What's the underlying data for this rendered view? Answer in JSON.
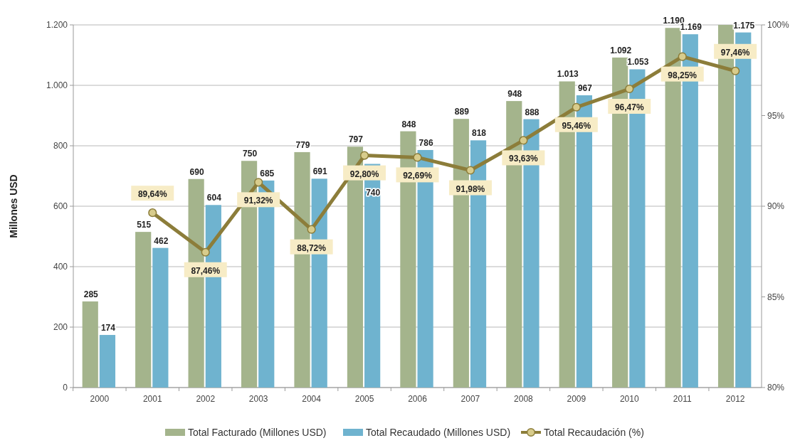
{
  "chart_data": {
    "type": "bar",
    "ylabel": "Millones USD",
    "categories": [
      "2000",
      "2001",
      "2002",
      "2003",
      "2004",
      "2005",
      "2006",
      "2007",
      "2008",
      "2009",
      "2010",
      "2011",
      "2012"
    ],
    "series": [
      {
        "name": "Total Facturado (Millones USD)",
        "color": "#a4b48c",
        "values": [
          285,
          515,
          690,
          750,
          779,
          797,
          848,
          889,
          948,
          1013,
          1092,
          1190,
          1200
        ],
        "value_labels": [
          "285",
          "515",
          "690",
          "750",
          "779",
          "797",
          "848",
          "889",
          "948",
          "1.013",
          "1.092",
          "1.190",
          null
        ]
      },
      {
        "name": "Total Recaudado (Millones USD)",
        "color": "#6fb3cf",
        "values": [
          174,
          462,
          604,
          685,
          691,
          740,
          786,
          818,
          888,
          967,
          1053,
          1169,
          1175
        ],
        "value_labels": [
          "174",
          "462",
          "604",
          "685",
          "691",
          "740",
          "786",
          "818",
          "888",
          "967",
          "1.053",
          "1.169",
          "1.175"
        ]
      },
      {
        "name": "Total Recaudación (%)",
        "type": "line",
        "axis": "y2",
        "color": "#8c7d3a",
        "marker": "circle",
        "values": [
          null,
          89.64,
          87.46,
          91.32,
          88.72,
          92.8,
          92.69,
          91.98,
          93.63,
          95.46,
          96.47,
          98.25,
          97.46
        ],
        "value_labels": [
          null,
          "89,64%",
          "87,46%",
          "91,32%",
          "88,72%",
          "92,80%",
          "92,69%",
          "91,98%",
          "93,63%",
          "95,46%",
          "96,47%",
          "98,25%",
          "97,46%"
        ]
      }
    ],
    "ylim": [
      0,
      1200
    ],
    "yticks": [
      {
        "value": 0,
        "label": "0"
      },
      {
        "value": 200,
        "label": "200"
      },
      {
        "value": 400,
        "label": "400"
      },
      {
        "value": 600,
        "label": "600"
      },
      {
        "value": 800,
        "label": "800"
      },
      {
        "value": 1000,
        "label": "1.000"
      },
      {
        "value": 1200,
        "label": "1.200"
      }
    ],
    "y2lim": [
      80,
      100
    ],
    "y2ticks": [
      {
        "value": 80,
        "label": "80%"
      },
      {
        "value": 85,
        "label": "85%"
      },
      {
        "value": 90,
        "label": "90%"
      },
      {
        "value": 95,
        "label": "95%"
      },
      {
        "value": 100,
        "label": "100%"
      }
    ],
    "grid": "y",
    "legend": "bottom"
  }
}
